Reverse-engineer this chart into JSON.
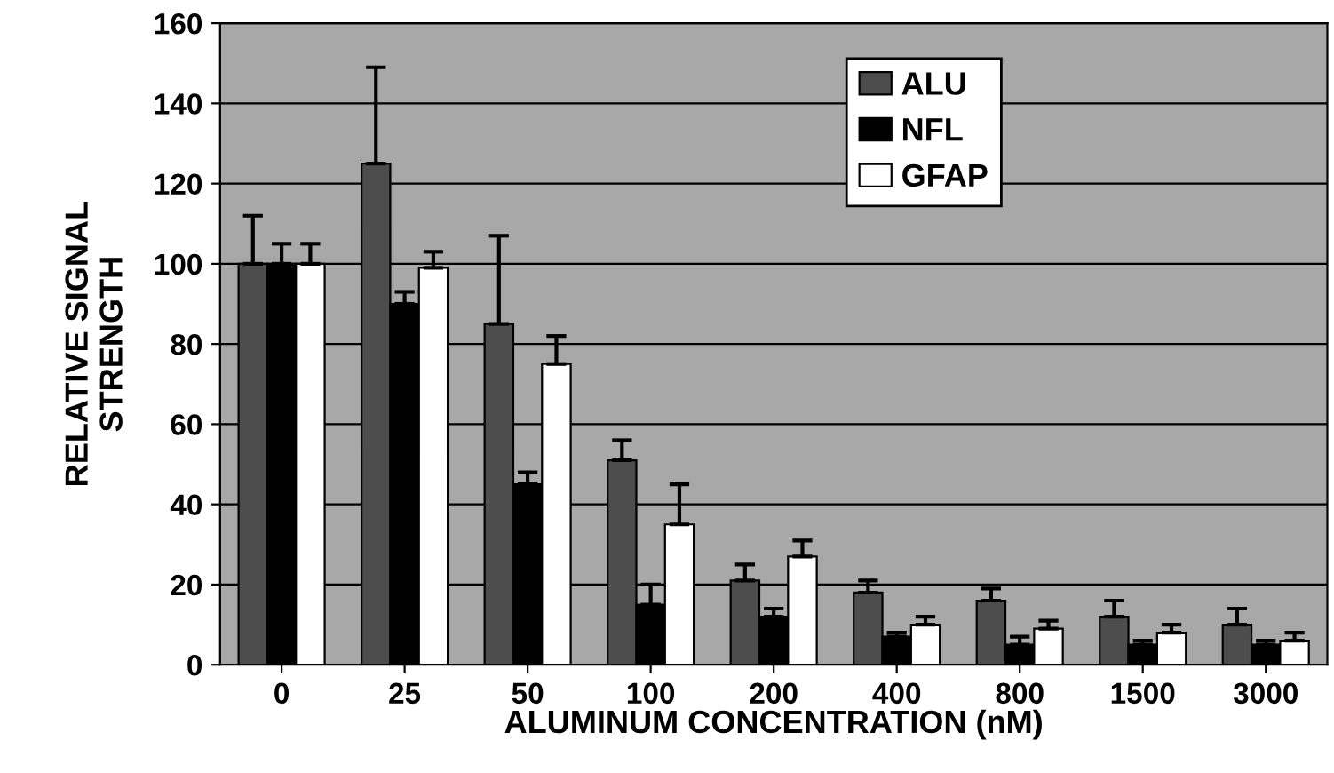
{
  "chart_data": {
    "type": "bar",
    "xlabel": "ALUMINUM CONCENTRATION (nM)",
    "ylabel": "RELATIVE SIGNAL\nSTRENGTH",
    "categories": [
      "0",
      "25",
      "50",
      "100",
      "200",
      "400",
      "800",
      "1500",
      "3000"
    ],
    "series": [
      {
        "name": "ALU",
        "color": "#4d4d4d",
        "values": [
          100,
          125,
          85,
          51,
          21,
          18,
          16,
          12,
          10
        ],
        "errors": [
          12,
          24,
          22,
          5,
          4,
          3,
          3,
          4,
          4
        ]
      },
      {
        "name": "NFL",
        "color": "#000000",
        "values": [
          100,
          90,
          45,
          15,
          12,
          7,
          5,
          5,
          5
        ],
        "errors": [
          5,
          3,
          3,
          5,
          2,
          1,
          2,
          1,
          1
        ]
      },
      {
        "name": "GFAP",
        "color": "#ffffff",
        "values": [
          100,
          99,
          75,
          35,
          27,
          10,
          9,
          8,
          6
        ],
        "errors": [
          5,
          4,
          7,
          10,
          4,
          2,
          2,
          2,
          2
        ]
      }
    ],
    "ylim": [
      0,
      160
    ],
    "yticks": [
      0,
      20,
      40,
      60,
      80,
      100,
      120,
      140,
      160
    ],
    "grid": "y",
    "legend": "top right"
  }
}
